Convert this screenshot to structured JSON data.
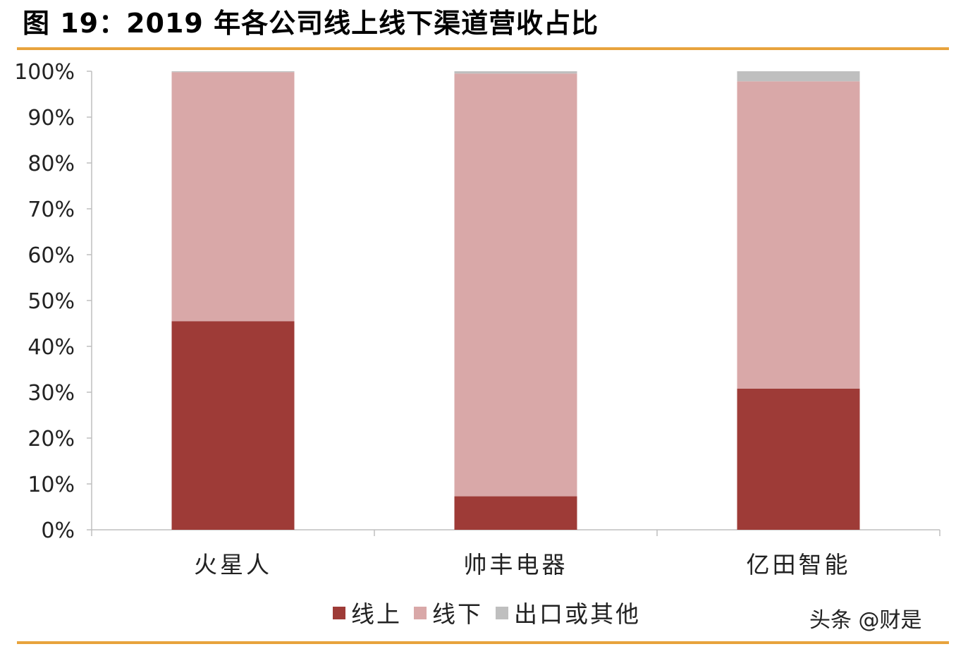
{
  "figure": {
    "title": "图 19：2019 年各公司线上线下渠道营收占比",
    "watermark": "头条 @财是"
  },
  "colors": {
    "online": "#9E3B37",
    "offline": "#D9A8A8",
    "export": "#BFBFBF",
    "rule": "#E8A33D",
    "axis": "#BFBFBF"
  },
  "chart_data": {
    "type": "bar",
    "stacked": true,
    "categories": [
      "火星人",
      "帅丰电器",
      "亿田智能"
    ],
    "series": [
      {
        "name": "线上",
        "values": [
          45.5,
          7.3,
          30.8
        ],
        "color": "#9E3B37"
      },
      {
        "name": "线下",
        "values": [
          54.3,
          92.2,
          67.0
        ],
        "color": "#D9A8A8"
      },
      {
        "name": "出口或其他",
        "values": [
          0.2,
          0.5,
          2.2
        ],
        "color": "#BFBFBF"
      }
    ],
    "ylim": [
      0,
      100
    ],
    "yticks": [
      "0%",
      "10%",
      "20%",
      "30%",
      "40%",
      "50%",
      "60%",
      "70%",
      "80%",
      "90%",
      "100%"
    ],
    "grid": false,
    "legend": "bottom"
  }
}
